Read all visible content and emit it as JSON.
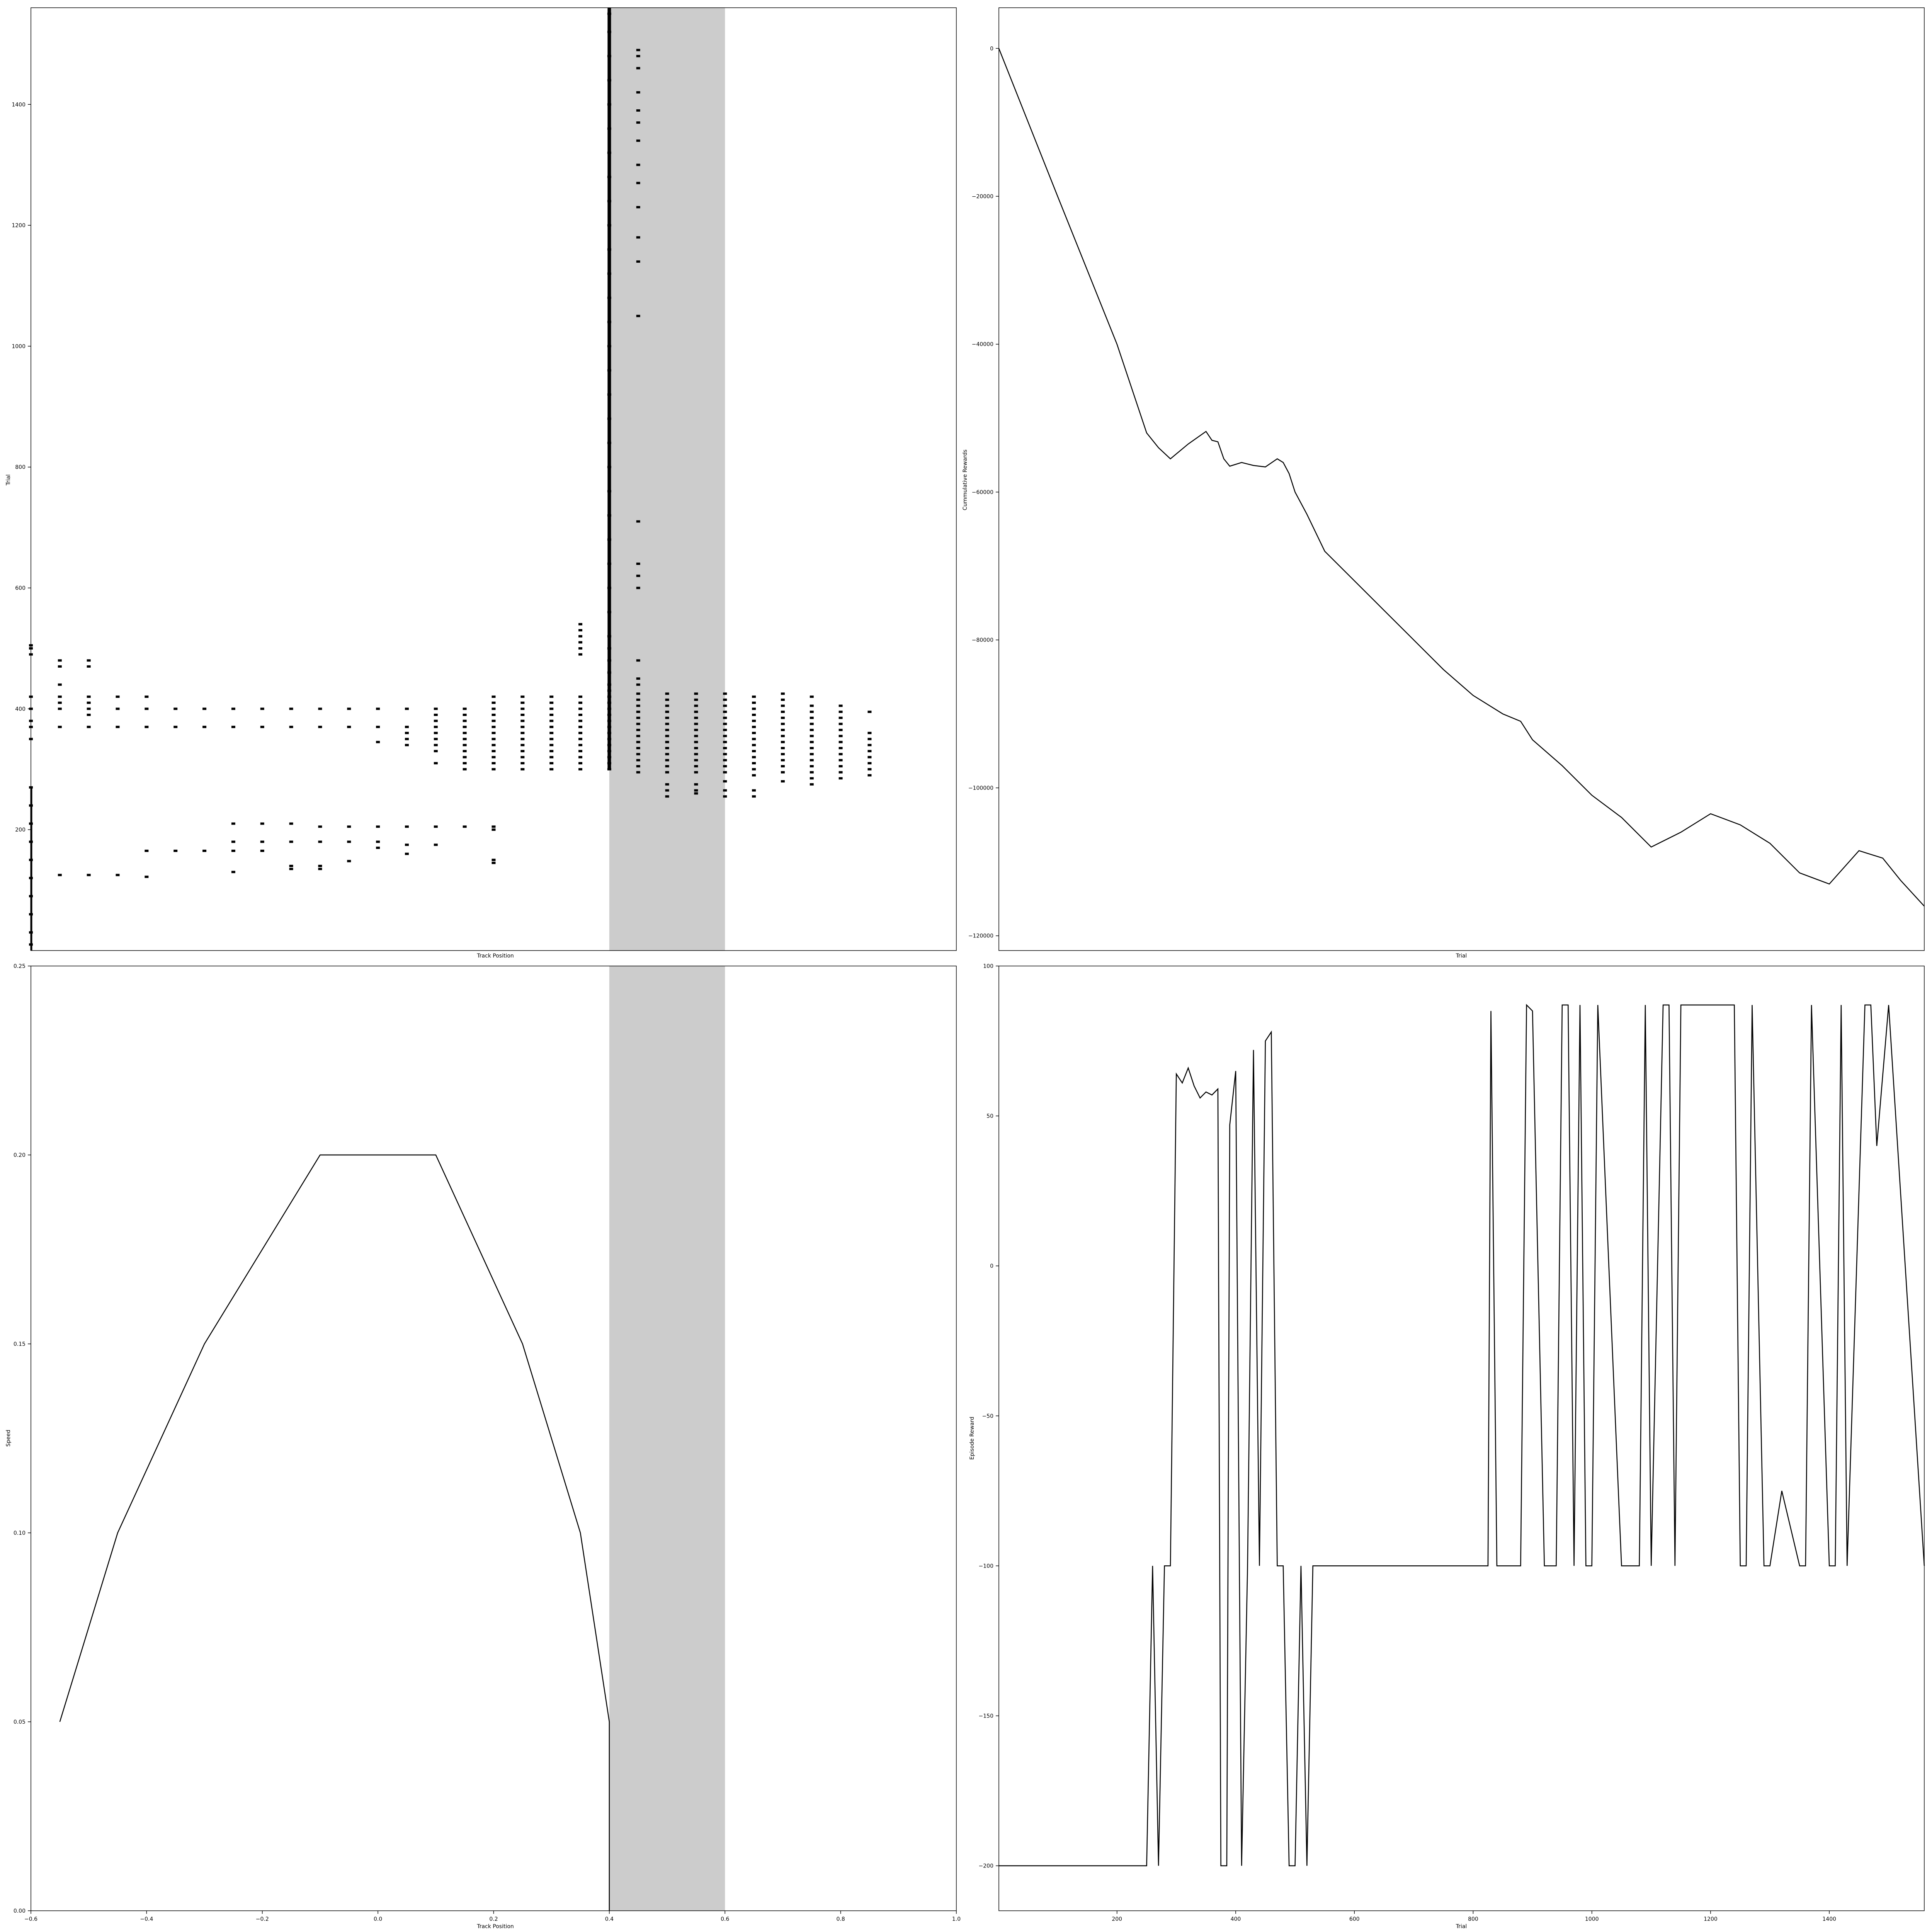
{
  "chart_data": [
    {
      "id": "top-left",
      "type": "raster",
      "title": "",
      "xlabel": "Track Position",
      "ylabel": "Trial",
      "xlim": [
        -0.6,
        1.0
      ],
      "ylim": [
        0,
        1560
      ],
      "xticks": [],
      "yticks": [
        200,
        400,
        600,
        800,
        1000,
        1200,
        1400
      ],
      "shaded_region": [
        0.4,
        0.6
      ],
      "grid": false,
      "clusters": [
        {
          "x": -0.6,
          "y": [
            10,
            30,
            60,
            90,
            120,
            150,
            180,
            210,
            240,
            270,
            350,
            370,
            380,
            400,
            420,
            490,
            500,
            505
          ]
        },
        {
          "x": 0.4,
          "y": [
            300,
            310,
            320,
            330,
            340,
            350,
            360,
            370,
            380,
            390,
            400,
            410,
            420,
            430,
            440,
            460,
            480,
            500,
            520,
            560,
            600,
            640,
            680,
            720,
            760,
            800,
            840,
            880,
            920,
            960,
            1000,
            1040,
            1080,
            1120,
            1160,
            1200,
            1240,
            1280,
            1320,
            1360,
            1400,
            1440,
            1480,
            1520,
            1550
          ]
        },
        {
          "x": 0.45,
          "y": [
            295,
            305,
            315,
            325,
            335,
            345,
            355,
            365,
            375,
            385,
            395,
            405,
            415,
            425,
            440,
            450,
            480,
            600,
            620,
            640,
            710,
            1050,
            1140,
            1180,
            1230,
            1270,
            1300,
            1340,
            1370,
            1390,
            1420,
            1460,
            1480,
            1490
          ]
        },
        {
          "x": 0.35,
          "y": [
            300,
            310,
            320,
            330,
            340,
            350,
            360,
            370,
            380,
            390,
            400,
            410,
            420,
            490,
            500,
            510,
            520,
            530,
            540
          ]
        },
        {
          "x": 0.3,
          "y": [
            300,
            310,
            320,
            330,
            340,
            350,
            360,
            370,
            380,
            390,
            400,
            410,
            420
          ]
        },
        {
          "x": 0.25,
          "y": [
            300,
            310,
            320,
            330,
            340,
            350,
            360,
            370,
            380,
            390,
            400,
            410,
            420
          ]
        },
        {
          "x": 0.2,
          "y": [
            145,
            150,
            200,
            205,
            300,
            310,
            320,
            330,
            340,
            350,
            360,
            370,
            380,
            390,
            400,
            410,
            420
          ]
        },
        {
          "x": 0.15,
          "y": [
            205,
            300,
            310,
            320,
            330,
            340,
            350,
            360,
            370,
            380,
            390,
            400
          ]
        },
        {
          "x": 0.1,
          "y": [
            175,
            205,
            310,
            330,
            340,
            350,
            360,
            370,
            380,
            390,
            400
          ]
        },
        {
          "x": 0.05,
          "y": [
            160,
            175,
            205,
            340,
            350,
            360,
            370,
            400
          ]
        },
        {
          "x": 0.0,
          "y": [
            170,
            180,
            205,
            345,
            370,
            400
          ]
        },
        {
          "x": -0.05,
          "y": [
            148,
            180,
            205,
            370,
            400
          ]
        },
        {
          "x": -0.1,
          "y": [
            135,
            140,
            180,
            205,
            370,
            400
          ]
        },
        {
          "x": -0.15,
          "y": [
            135,
            140,
            180,
            210,
            370,
            400
          ]
        },
        {
          "x": -0.2,
          "y": [
            165,
            180,
            210,
            370,
            400
          ]
        },
        {
          "x": -0.25,
          "y": [
            130,
            165,
            180,
            210,
            370,
            400
          ]
        },
        {
          "x": -0.3,
          "y": [
            165,
            370,
            400
          ]
        },
        {
          "x": -0.35,
          "y": [
            165,
            370,
            400
          ]
        },
        {
          "x": -0.4,
          "y": [
            122,
            165,
            370,
            400,
            420
          ]
        },
        {
          "x": -0.45,
          "y": [
            125,
            370,
            400,
            420
          ]
        },
        {
          "x": -0.5,
          "y": [
            125,
            370,
            390,
            400,
            410,
            420,
            470,
            480
          ]
        },
        {
          "x": -0.55,
          "y": [
            125,
            370,
            400,
            410,
            420,
            440,
            470,
            480
          ]
        },
        {
          "x": 0.5,
          "y": [
            255,
            265,
            275,
            295,
            305,
            315,
            325,
            335,
            345,
            355,
            365,
            375,
            385,
            395,
            405,
            415,
            425
          ]
        },
        {
          "x": 0.55,
          "y": [
            260,
            265,
            275,
            295,
            305,
            315,
            325,
            335,
            345,
            355,
            365,
            375,
            385,
            395,
            405,
            415,
            425
          ]
        },
        {
          "x": 0.6,
          "y": [
            255,
            265,
            280,
            295,
            305,
            315,
            325,
            335,
            345,
            355,
            365,
            375,
            385,
            395,
            405,
            415,
            425
          ]
        },
        {
          "x": 0.65,
          "y": [
            255,
            265,
            290,
            300,
            310,
            320,
            330,
            340,
            350,
            360,
            370,
            380,
            390,
            400,
            410,
            420
          ]
        },
        {
          "x": 0.7,
          "y": [
            280,
            295,
            305,
            315,
            325,
            335,
            345,
            355,
            365,
            375,
            385,
            395,
            405,
            415,
            425
          ]
        },
        {
          "x": 0.75,
          "y": [
            275,
            285,
            295,
            305,
            315,
            325,
            335,
            345,
            355,
            365,
            375,
            385,
            395,
            405,
            420
          ]
        },
        {
          "x": 0.8,
          "y": [
            285,
            295,
            305,
            315,
            325,
            335,
            345,
            355,
            365,
            375,
            385,
            395,
            405
          ]
        },
        {
          "x": 0.85,
          "y": [
            290,
            300,
            310,
            320,
            330,
            340,
            350,
            360,
            395
          ]
        }
      ]
    },
    {
      "id": "top-right",
      "type": "line",
      "title": "",
      "xlabel": "Trial",
      "ylabel": "Cummulative Rewards",
      "xlim": [
        1,
        1560
      ],
      "ylim": [
        -122000,
        5500
      ],
      "xticks": [],
      "yticks": [
        0,
        -20000,
        -40000,
        -60000,
        -80000,
        -100000,
        -120000
      ],
      "ytick_labels": [
        "0",
        "−20000",
        "−40000",
        "−60000",
        "−80000",
        "−100000",
        "−120000"
      ],
      "grid": false,
      "x": [
        1,
        100,
        200,
        250,
        270,
        290,
        320,
        350,
        360,
        370,
        380,
        390,
        410,
        420,
        430,
        450,
        470,
        480,
        490,
        500,
        520,
        550,
        600,
        650,
        700,
        750,
        800,
        850,
        880,
        900,
        950,
        1000,
        1050,
        1100,
        1150,
        1200,
        1250,
        1300,
        1350,
        1400,
        1450,
        1490,
        1520,
        1560
      ],
      "y": [
        0,
        -20000,
        -40000,
        -52000,
        -54000,
        -55500,
        -53500,
        -51800,
        -53000,
        -53200,
        -55500,
        -56500,
        -56000,
        -56200,
        -56400,
        -56600,
        -55500,
        -56000,
        -57500,
        -60000,
        -63000,
        -68000,
        -72000,
        -76000,
        -80000,
        -84000,
        -87500,
        -90000,
        -91000,
        -93500,
        -97000,
        -101000,
        -104000,
        -108000,
        -106000,
        -103500,
        -105000,
        -107500,
        -111500,
        -113000,
        -108500,
        -109500,
        -112500,
        -116000
      ]
    },
    {
      "id": "bottom-left",
      "type": "line",
      "title": "",
      "xlabel": "Track Position",
      "ylabel": "Speed",
      "xlim": [
        -0.6,
        1.0
      ],
      "ylim": [
        0.0,
        0.25
      ],
      "xticks": [
        -0.6,
        -0.4,
        -0.2,
        0.0,
        0.2,
        0.4,
        0.6,
        0.8,
        1.0
      ],
      "xtick_labels": [
        "−0.6",
        "−0.4",
        "−0.2",
        "0.0",
        "0.2",
        "0.4",
        "0.6",
        "0.8",
        "1.0"
      ],
      "yticks": [
        0.0,
        0.05,
        0.1,
        0.15,
        0.2,
        0.25
      ],
      "ytick_labels": [
        "0.00",
        "0.05",
        "0.10",
        "0.15",
        "0.20",
        "0.25"
      ],
      "shaded_region": [
        0.4,
        0.6
      ],
      "grid": false,
      "x": [
        -0.55,
        -0.45,
        -0.3,
        -0.1,
        0.1,
        0.25,
        0.35,
        0.4,
        0.4
      ],
      "y": [
        0.05,
        0.1,
        0.15,
        0.2,
        0.2,
        0.15,
        0.1,
        0.05,
        0.0
      ]
    },
    {
      "id": "bottom-right",
      "type": "line",
      "title": "",
      "xlabel": "Trial",
      "ylabel": "Episode Reward",
      "xlim": [
        1,
        1560
      ],
      "ylim": [
        -215,
        100
      ],
      "xticks": [
        200,
        400,
        600,
        800,
        1000,
        1200,
        1400
      ],
      "yticks": [
        100,
        50,
        0,
        -50,
        -100,
        -150,
        -200
      ],
      "ytick_labels": [
        "100",
        "50",
        "0",
        "−50",
        "−100",
        "−150",
        "−200"
      ],
      "grid": false,
      "x": [
        1,
        250,
        260,
        270,
        280,
        290,
        300,
        310,
        320,
        330,
        340,
        350,
        360,
        370,
        375,
        380,
        385,
        390,
        400,
        410,
        420,
        430,
        440,
        450,
        460,
        470,
        480,
        490,
        500,
        510,
        520,
        530,
        540,
        550,
        600,
        700,
        800,
        825,
        830,
        840,
        860,
        880,
        890,
        900,
        920,
        940,
        950,
        960,
        970,
        980,
        990,
        1000,
        1010,
        1050,
        1080,
        1090,
        1100,
        1120,
        1130,
        1140,
        1150,
        1170,
        1200,
        1230,
        1240,
        1250,
        1260,
        1270,
        1290,
        1300,
        1320,
        1350,
        1360,
        1370,
        1400,
        1410,
        1420,
        1430,
        1460,
        1470,
        1480,
        1500,
        1560
      ],
      "y": [
        -200,
        -200,
        -100,
        -200,
        -100,
        -100,
        64,
        61,
        66,
        60,
        56,
        58,
        57,
        59,
        -200,
        -200,
        -200,
        47,
        65,
        -200,
        -100,
        72,
        -100,
        75,
        78,
        -100,
        -100,
        -200,
        -200,
        -100,
        -200,
        -100,
        -100,
        -100,
        -100,
        -100,
        -100,
        -100,
        85,
        -100,
        -100,
        -100,
        87,
        85,
        -100,
        -100,
        87,
        87,
        -100,
        87,
        -100,
        -100,
        87,
        -100,
        -100,
        87,
        -100,
        87,
        87,
        -100,
        87,
        87,
        87,
        87,
        87,
        -100,
        -100,
        87,
        -100,
        -100,
        -75,
        -100,
        -100,
        87,
        -100,
        -100,
        87,
        -100,
        87,
        87,
        40,
        87,
        -100
      ]
    }
  ]
}
